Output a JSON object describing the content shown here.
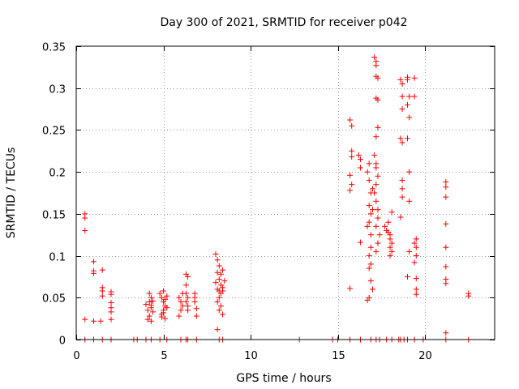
{
  "chart_data": {
    "type": "scatter",
    "title": "Day 300 of 2021, SRMTID for receiver p042",
    "xlabel": "GPS time / hours",
    "ylabel": "SRMTID / TECUs",
    "xlim": [
      0,
      24
    ],
    "ylim": [
      0,
      0.35
    ],
    "xticks": [
      0,
      5,
      10,
      15,
      20
    ],
    "xtick_labels": [
      "0",
      "5",
      "10",
      "15",
      "20"
    ],
    "yticks": [
      0,
      0.05,
      0.1,
      0.15,
      0.2,
      0.25,
      0.3,
      0.35
    ],
    "ytick_labels": [
      "0",
      "0.05",
      "0.1",
      "0.15",
      "0.2",
      "0.25",
      "0.3",
      "0.35"
    ],
    "grid": true,
    "marker": "+",
    "series": [
      {
        "name": "SRMTID",
        "color": "#ff0000",
        "points": [
          [
            0.5,
            0.15
          ],
          [
            0.5,
            0.145
          ],
          [
            0.5,
            0.13
          ],
          [
            0.5,
            0.024
          ],
          [
            0.5,
            0.0
          ],
          [
            1.0,
            0.093
          ],
          [
            1.0,
            0.082
          ],
          [
            1.0,
            0.079
          ],
          [
            1.0,
            0.022
          ],
          [
            1.0,
            0.0
          ],
          [
            1.4,
            0.022
          ],
          [
            1.5,
            0.083
          ],
          [
            1.5,
            0.062
          ],
          [
            1.5,
            0.058
          ],
          [
            1.5,
            0.052
          ],
          [
            1.5,
            0.0
          ],
          [
            2.0,
            0.057
          ],
          [
            2.0,
            0.054
          ],
          [
            2.0,
            0.044
          ],
          [
            2.0,
            0.038
          ],
          [
            2.0,
            0.033
          ],
          [
            2.0,
            0.024
          ],
          [
            2.0,
            0.0
          ],
          [
            3.3,
            0.0
          ],
          [
            3.5,
            0.0
          ],
          [
            4.0,
            0.042
          ],
          [
            4.1,
            0.035
          ],
          [
            4.2,
            0.028
          ],
          [
            4.2,
            0.045
          ],
          [
            4.3,
            0.05
          ],
          [
            4.3,
            0.038
          ],
          [
            4.1,
            0.024
          ],
          [
            4.4,
            0.033
          ],
          [
            4.3,
            0.022
          ],
          [
            4.2,
            0.055
          ],
          [
            4.4,
            0.046
          ],
          [
            4.3,
            0.041
          ],
          [
            4.0,
            0.0
          ],
          [
            4.3,
            0.0
          ],
          [
            4.8,
            0.055
          ],
          [
            4.9,
            0.05
          ],
          [
            5.0,
            0.045
          ],
          [
            5.1,
            0.04
          ],
          [
            5.0,
            0.035
          ],
          [
            4.9,
            0.03
          ],
          [
            5.1,
            0.025
          ],
          [
            5.2,
            0.052
          ],
          [
            5.1,
            0.048
          ],
          [
            5.0,
            0.058
          ],
          [
            4.9,
            0.027
          ],
          [
            5.2,
            0.038
          ],
          [
            5.0,
            0.032
          ],
          [
            4.8,
            0.0
          ],
          [
            5.2,
            0.0
          ],
          [
            5.9,
            0.05
          ],
          [
            6.0,
            0.045
          ],
          [
            6.1,
            0.04
          ],
          [
            6.0,
            0.035
          ],
          [
            5.9,
            0.028
          ],
          [
            6.1,
            0.055
          ],
          [
            6.0,
            0.0
          ],
          [
            6.3,
            0.078
          ],
          [
            6.3,
            0.065
          ],
          [
            6.4,
            0.075
          ],
          [
            6.3,
            0.055
          ],
          [
            6.4,
            0.05
          ],
          [
            6.4,
            0.04
          ],
          [
            6.3,
            0.045
          ],
          [
            6.4,
            0.035
          ],
          [
            6.3,
            0.0
          ],
          [
            6.4,
            0.0
          ],
          [
            6.8,
            0.055
          ],
          [
            6.8,
            0.045
          ],
          [
            6.9,
            0.037
          ],
          [
            6.9,
            0.028
          ],
          [
            6.8,
            0.05
          ],
          [
            6.9,
            0.0
          ],
          [
            8.0,
            0.102
          ],
          [
            8.1,
            0.095
          ],
          [
            8.2,
            0.088
          ],
          [
            8.1,
            0.08
          ],
          [
            8.2,
            0.072
          ],
          [
            8.3,
            0.065
          ],
          [
            8.1,
            0.06
          ],
          [
            8.2,
            0.058
          ],
          [
            8.4,
            0.062
          ],
          [
            8.3,
            0.055
          ],
          [
            8.2,
            0.05
          ],
          [
            8.1,
            0.045
          ],
          [
            8.3,
            0.04
          ],
          [
            8.2,
            0.035
          ],
          [
            8.4,
            0.03
          ],
          [
            8.1,
            0.012
          ],
          [
            8.4,
            0.083
          ],
          [
            8.3,
            0.078
          ],
          [
            8.0,
            0.068
          ],
          [
            8.5,
            0.07
          ],
          [
            8.4,
            0.058
          ],
          [
            8.2,
            0.0
          ],
          [
            8.4,
            0.0
          ],
          [
            12.8,
            0.0
          ],
          [
            14.7,
            0.0
          ],
          [
            15.0,
            0.0
          ],
          [
            15.7,
            0.262
          ],
          [
            15.8,
            0.255
          ],
          [
            15.8,
            0.225
          ],
          [
            15.8,
            0.218
          ],
          [
            15.7,
            0.196
          ],
          [
            15.8,
            0.185
          ],
          [
            15.7,
            0.178
          ],
          [
            15.7,
            0.061
          ],
          [
            15.7,
            0.0
          ],
          [
            16.2,
            0.22
          ],
          [
            16.3,
            0.215
          ],
          [
            16.3,
            0.205
          ],
          [
            16.3,
            0.116
          ],
          [
            16.3,
            0.0
          ],
          [
            16.7,
            0.2
          ],
          [
            16.8,
            0.21
          ],
          [
            16.8,
            0.19
          ],
          [
            16.9,
            0.175
          ],
          [
            16.8,
            0.16
          ],
          [
            16.9,
            0.15
          ],
          [
            16.8,
            0.14
          ],
          [
            16.7,
            0.135
          ],
          [
            16.9,
            0.125
          ],
          [
            16.9,
            0.11
          ],
          [
            16.8,
            0.1
          ],
          [
            16.9,
            0.09
          ],
          [
            16.8,
            0.085
          ],
          [
            16.9,
            0.07
          ],
          [
            17.0,
            0.06
          ],
          [
            16.8,
            0.05
          ],
          [
            17.0,
            0.18
          ],
          [
            17.0,
            0.155
          ],
          [
            16.7,
            0.047
          ],
          [
            16.9,
            0.0
          ],
          [
            17.1,
            0.337
          ],
          [
            17.2,
            0.332
          ],
          [
            17.2,
            0.327
          ],
          [
            17.2,
            0.314
          ],
          [
            17.3,
            0.312
          ],
          [
            17.2,
            0.288
          ],
          [
            17.3,
            0.286
          ],
          [
            17.3,
            0.253
          ],
          [
            17.2,
            0.242
          ],
          [
            17.1,
            0.22
          ],
          [
            17.2,
            0.21
          ],
          [
            17.2,
            0.205
          ],
          [
            17.3,
            0.195
          ],
          [
            17.2,
            0.185
          ],
          [
            17.1,
            0.175
          ],
          [
            17.2,
            0.165
          ],
          [
            17.3,
            0.155
          ],
          [
            17.3,
            0.145
          ],
          [
            17.2,
            0.135
          ],
          [
            17.4,
            0.125
          ],
          [
            17.3,
            0.115
          ],
          [
            17.2,
            0.105
          ],
          [
            17.2,
            0.0
          ],
          [
            17.4,
            0.0
          ],
          [
            17.7,
            0.135
          ],
          [
            17.8,
            0.13
          ],
          [
            17.9,
            0.128
          ],
          [
            18.0,
            0.125
          ],
          [
            18.0,
            0.12
          ],
          [
            18.1,
            0.115
          ],
          [
            18.0,
            0.11
          ],
          [
            18.1,
            0.105
          ],
          [
            18.1,
            0.152
          ],
          [
            17.9,
            0.14
          ],
          [
            18.0,
            0.1
          ],
          [
            17.8,
            0.0
          ],
          [
            18.1,
            0.0
          ],
          [
            18.6,
            0.31
          ],
          [
            18.7,
            0.305
          ],
          [
            18.7,
            0.29
          ],
          [
            18.7,
            0.275
          ],
          [
            18.6,
            0.24
          ],
          [
            18.7,
            0.235
          ],
          [
            18.7,
            0.19
          ],
          [
            18.7,
            0.18
          ],
          [
            18.7,
            0.17
          ],
          [
            18.6,
            0.146
          ],
          [
            18.5,
            0.0
          ],
          [
            18.6,
            0.0
          ],
          [
            18.8,
            0.0
          ],
          [
            19.0,
            0.313
          ],
          [
            19.0,
            0.31
          ],
          [
            19.1,
            0.29
          ],
          [
            19.0,
            0.28
          ],
          [
            19.1,
            0.265
          ],
          [
            19.0,
            0.24
          ],
          [
            19.1,
            0.2
          ],
          [
            19.1,
            0.165
          ],
          [
            19.1,
            0.105
          ],
          [
            19.0,
            0.075
          ],
          [
            19.0,
            0.0
          ],
          [
            19.4,
            0.312
          ],
          [
            19.4,
            0.29
          ],
          [
            19.5,
            0.12
          ],
          [
            19.4,
            0.115
          ],
          [
            19.5,
            0.11
          ],
          [
            19.5,
            0.1
          ],
          [
            19.4,
            0.092
          ],
          [
            19.5,
            0.073
          ],
          [
            19.5,
            0.06
          ],
          [
            19.5,
            0.054
          ],
          [
            19.4,
            0.0
          ],
          [
            19.9,
            0.0
          ],
          [
            21.2,
            0.188
          ],
          [
            21.2,
            0.182
          ],
          [
            21.2,
            0.17
          ],
          [
            21.2,
            0.138
          ],
          [
            21.2,
            0.11
          ],
          [
            21.2,
            0.087
          ],
          [
            21.2,
            0.072
          ],
          [
            21.2,
            0.067
          ],
          [
            21.2,
            0.008
          ],
          [
            21.2,
            0.0
          ],
          [
            22.5,
            0.055
          ],
          [
            22.5,
            0.052
          ],
          [
            22.5,
            0.0
          ]
        ]
      }
    ]
  }
}
